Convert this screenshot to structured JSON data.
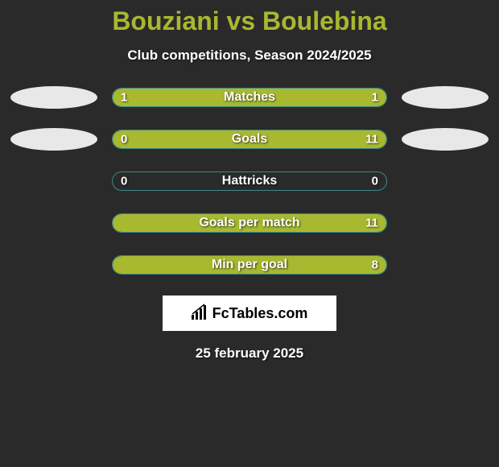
{
  "title": "Bouziani vs Boulebina",
  "subtitle": "Club competitions, Season 2024/2025",
  "colors": {
    "background": "#2a2a2a",
    "accent": "#a8b82f",
    "bar_border": "#3a8a8a",
    "oval": "#e8e8e8",
    "text": "#ffffff"
  },
  "stats": [
    {
      "label": "Matches",
      "left_val": "1",
      "right_val": "1",
      "left_pct": 50,
      "right_pct": 50,
      "show_left_oval": true,
      "show_right_oval": true
    },
    {
      "label": "Goals",
      "left_val": "0",
      "right_val": "11",
      "left_pct": 20,
      "right_pct": 80,
      "show_left_oval": true,
      "show_right_oval": true
    },
    {
      "label": "Hattricks",
      "left_val": "0",
      "right_val": "0",
      "left_pct": 0,
      "right_pct": 0,
      "show_left_oval": false,
      "show_right_oval": false
    },
    {
      "label": "Goals per match",
      "left_val": "",
      "right_val": "11",
      "left_pct": 0,
      "right_pct": 100,
      "show_left_oval": false,
      "show_right_oval": false
    },
    {
      "label": "Min per goal",
      "left_val": "",
      "right_val": "8",
      "left_pct": 0,
      "right_pct": 100,
      "show_left_oval": false,
      "show_right_oval": false
    }
  ],
  "brand": "FcTables.com",
  "date": "25 february 2025"
}
